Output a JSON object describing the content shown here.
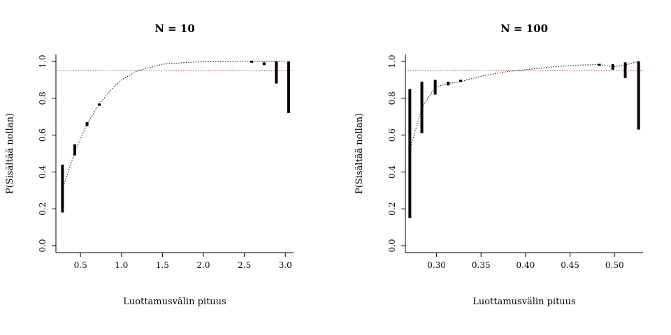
{
  "chart_data": [
    {
      "type": "line",
      "title": "N = 10",
      "xlabel": "Luottamusvälin pituus",
      "ylabel": "P(Sisältää nollan)",
      "xlim": [
        0.2,
        3.1
      ],
      "ylim": [
        0.0,
        1.0
      ],
      "xticks": [
        "0.5",
        "1.0",
        "1.5",
        "2.0",
        "2.5",
        "3.0"
      ],
      "yticks": [
        "0.0",
        "0.2",
        "0.4",
        "0.6",
        "0.8",
        "1.0"
      ],
      "reference_line": {
        "y": 0.95,
        "color": "#e8332a",
        "style": "dotted"
      },
      "curve": {
        "style": "dotted",
        "x": [
          0.28,
          0.35,
          0.43,
          0.58,
          0.73,
          0.88,
          1.0,
          1.2,
          1.5,
          1.8,
          2.0,
          2.5,
          3.0
        ],
        "y": [
          0.31,
          0.4,
          0.51,
          0.66,
          0.77,
          0.85,
          0.9,
          0.95,
          0.985,
          0.995,
          0.998,
          1.0,
          1.0
        ]
      },
      "intervals": [
        {
          "x": 0.28,
          "low": 0.18,
          "high": 0.44
        },
        {
          "x": 0.43,
          "low": 0.49,
          "high": 0.55
        },
        {
          "x": 0.58,
          "low": 0.65,
          "high": 0.67
        },
        {
          "x": 0.73,
          "low": 0.76,
          "high": 0.77
        },
        {
          "x": 2.59,
          "low": 0.997,
          "high": 1.0
        },
        {
          "x": 2.74,
          "low": 0.98,
          "high": 0.995
        },
        {
          "x": 2.89,
          "low": 0.88,
          "high": 1.0
        },
        {
          "x": 3.04,
          "low": 0.72,
          "high": 1.0
        }
      ]
    },
    {
      "type": "line",
      "title": "N = 100",
      "xlabel": "Luottamusvälin pituus",
      "ylabel": "P(Sisältää nollan)",
      "xlim": [
        0.265,
        0.532
      ],
      "ylim": [
        0.0,
        1.0
      ],
      "xticks": [
        "0.30",
        "0.35",
        "0.40",
        "0.45",
        "0.50"
      ],
      "yticks": [
        "0.0",
        "0.2",
        "0.4",
        "0.6",
        "0.8",
        "1.0"
      ],
      "reference_line": {
        "y": 0.95,
        "color": "#e8332a",
        "style": "dotted"
      },
      "curve": {
        "style": "dotted",
        "x": [
          0.27,
          0.2835,
          0.2985,
          0.313,
          0.327,
          0.35,
          0.38,
          0.4,
          0.43,
          0.46,
          0.483,
          0.498,
          0.512,
          0.527
        ],
        "y": [
          0.52,
          0.75,
          0.86,
          0.88,
          0.89,
          0.92,
          0.945,
          0.955,
          0.97,
          0.98,
          0.983,
          0.97,
          0.98,
          1.0
        ]
      },
      "intervals": [
        {
          "x": 0.27,
          "low": 0.15,
          "high": 0.85
        },
        {
          "x": 0.2835,
          "low": 0.61,
          "high": 0.89
        },
        {
          "x": 0.2985,
          "low": 0.82,
          "high": 0.9
        },
        {
          "x": 0.313,
          "low": 0.87,
          "high": 0.89
        },
        {
          "x": 0.327,
          "low": 0.89,
          "high": 0.9
        },
        {
          "x": 0.483,
          "low": 0.978,
          "high": 0.985
        },
        {
          "x": 0.498,
          "low": 0.955,
          "high": 0.985
        },
        {
          "x": 0.512,
          "low": 0.91,
          "high": 0.995
        },
        {
          "x": 0.527,
          "low": 0.63,
          "high": 1.0
        }
      ]
    }
  ]
}
